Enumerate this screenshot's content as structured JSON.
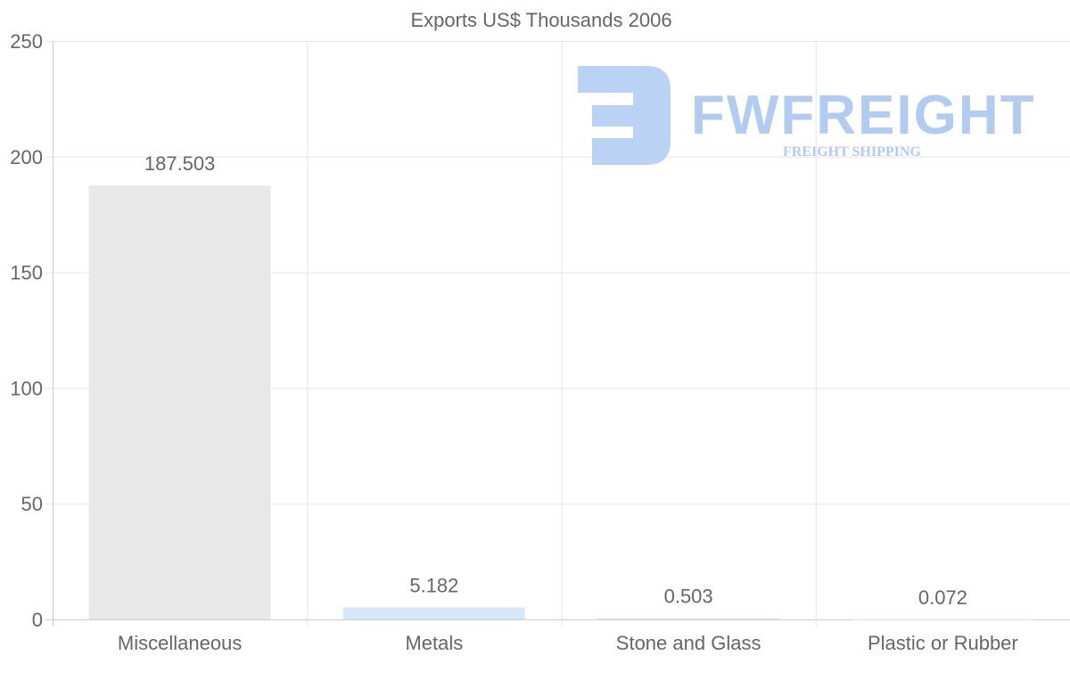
{
  "chart_data": {
    "type": "bar",
    "title": "Exports US$ Thousands 2006",
    "xlabel": "",
    "ylabel": "",
    "categories": [
      "Miscellaneous",
      "Metals",
      "Stone and Glass",
      "Plastic or Rubber"
    ],
    "values": [
      187.503,
      5.182,
      0.503,
      0.072
    ],
    "value_labels": [
      "187.503",
      "5.182",
      "0.503",
      "0.072"
    ],
    "bar_colors": [
      "#e8e8e8",
      "#d6e8f8",
      "#d6e8f8",
      "#d6e8f8"
    ],
    "ylim": [
      0,
      250
    ],
    "yticks": [
      0,
      50,
      100,
      150,
      200,
      250
    ],
    "grid": true,
    "legend": "none"
  },
  "watermark": {
    "brand": "FWFREIGHT",
    "tagline": "FREIGHT SHIPPING"
  }
}
